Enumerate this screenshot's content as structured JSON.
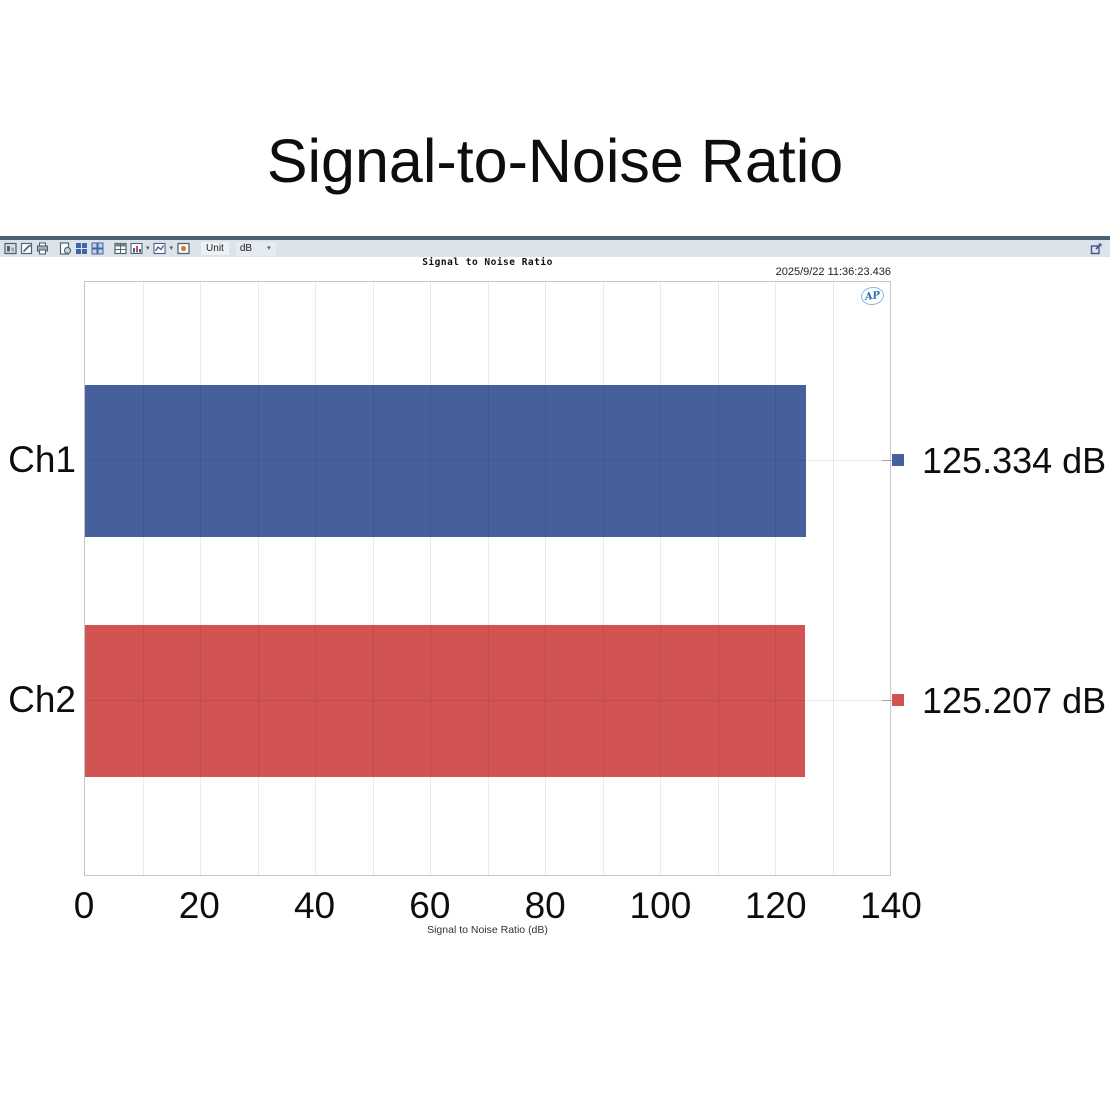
{
  "page": {
    "title": "Signal-to-Noise Ratio"
  },
  "toolbar": {
    "icons": [
      "report-icon",
      "edit-note-icon",
      "print-icon",
      "preview-icon",
      "layout-quad-icon",
      "layout-grid-icon",
      "data-table-icon",
      "bar-chart-dropdown-icon",
      "line-chart-dropdown-icon",
      "scope-icon",
      "export-icon"
    ],
    "unit_label": "Unit",
    "unit_value": "dB"
  },
  "chart": {
    "title": "Signal to Noise Ratio",
    "timestamp": "2025/9/22 11:36:23.436",
    "logo": "AP"
  },
  "chart_data": {
    "type": "bar",
    "orientation": "horizontal",
    "title": "Signal to Noise Ratio",
    "xlabel": "Signal to Noise Ratio (dB)",
    "categories": [
      "Ch1",
      "Ch2"
    ],
    "values": [
      125.334,
      125.207
    ],
    "value_labels": [
      "125.334 dB",
      "125.207 dB"
    ],
    "colors": [
      "#46609e",
      "#d15452"
    ],
    "xlim": [
      0,
      140
    ],
    "xticks": [
      0,
      20,
      40,
      60,
      80,
      100,
      120,
      140
    ],
    "grid": "vertical every 10 dB, faint horizontal at row centers",
    "legend_position": "right of plot, square markers with value labels"
  }
}
